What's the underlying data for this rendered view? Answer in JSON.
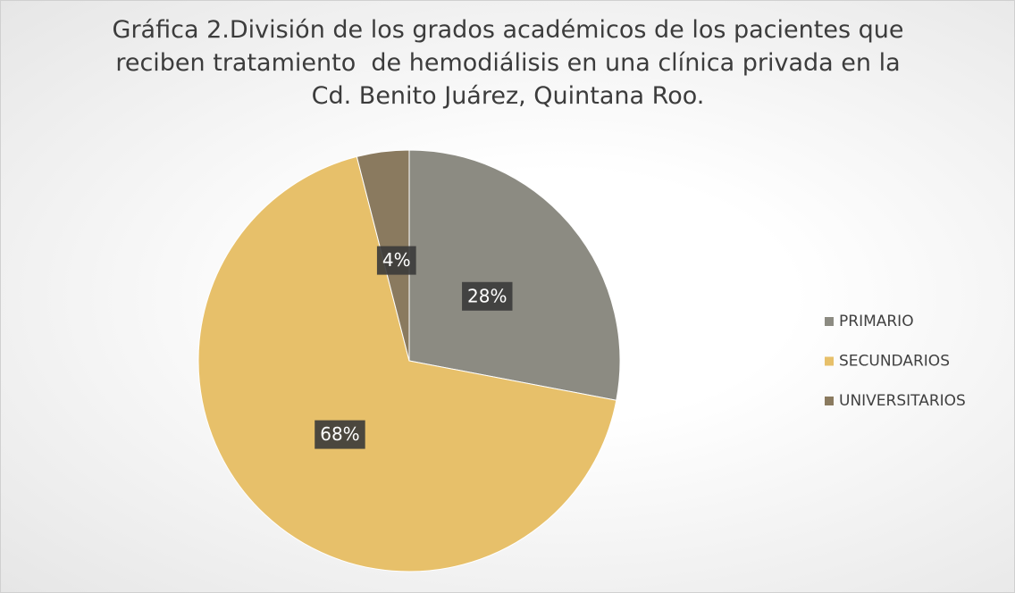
{
  "chart_data": {
    "type": "pie",
    "title": "Gráfica 2.División de los grados académicos de los pacientes que reciben tratamiento  de hemodiálisis en una clínica privada en la Cd. Benito Juárez, Quintana Roo.",
    "categories": [
      "PRIMARIO",
      "SECUNDARIOS",
      "UNIVERSITARIOS"
    ],
    "values": [
      28,
      68,
      4
    ],
    "value_labels": [
      "28%",
      "68%",
      "4%"
    ],
    "colors": [
      "#8c8b82",
      "#e7c06a",
      "#8a7a5f"
    ],
    "legend": "right"
  }
}
